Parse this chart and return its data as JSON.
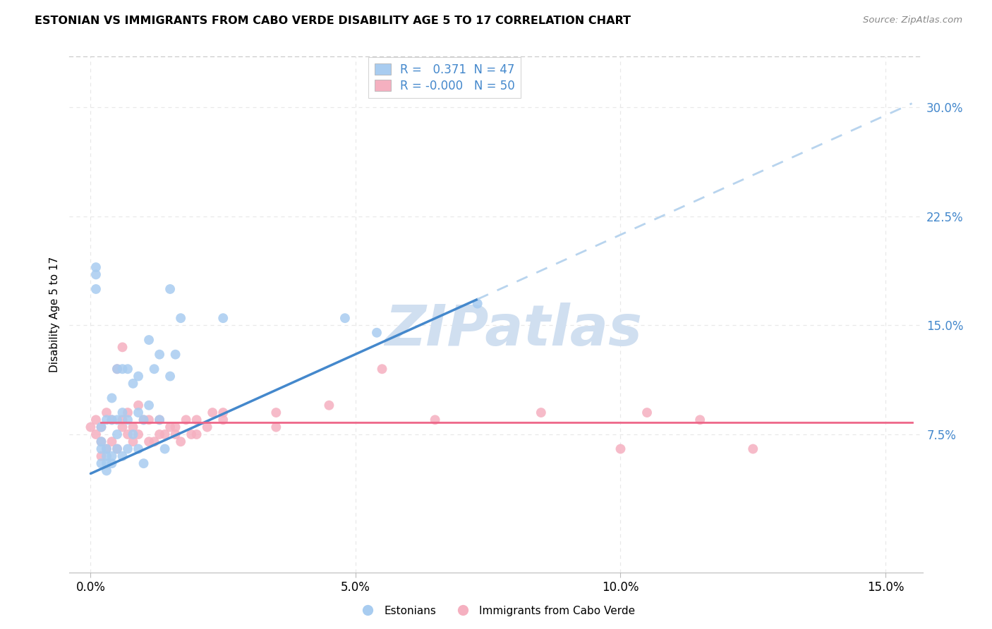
{
  "title": "ESTONIAN VS IMMIGRANTS FROM CABO VERDE DISABILITY AGE 5 TO 17 CORRELATION CHART",
  "source": "Source: ZipAtlas.com",
  "ylabel": "Disability Age 5 to 17",
  "x_ticks": [
    0.0,
    0.05,
    0.1,
    0.15
  ],
  "x_tick_labels": [
    "0.0%",
    "5.0%",
    "10.0%",
    "15.0%"
  ],
  "y_ticks_right": [
    0.075,
    0.15,
    0.225,
    0.3
  ],
  "y_tick_labels_right": [
    "7.5%",
    "15.0%",
    "22.5%",
    "30.0%"
  ],
  "xlim": [
    -0.004,
    0.157
  ],
  "ylim": [
    -0.02,
    0.335
  ],
  "legend_R_blue": "0.371",
  "legend_N_blue": "47",
  "legend_R_pink": "-0.000",
  "legend_N_pink": "50",
  "blue_color": "#A8CCF0",
  "pink_color": "#F5B0C0",
  "trend_blue_color": "#4488CC",
  "trend_pink_color": "#EE6688",
  "trend_dashed_color": "#B8D4EE",
  "watermark_text": "ZIPatlas",
  "watermark_color": "#D0DFF0",
  "grid_color": "#E8E8E8",
  "grid_style": "dotted",
  "blue_points_x": [
    0.001,
    0.001,
    0.001,
    0.002,
    0.002,
    0.002,
    0.002,
    0.003,
    0.003,
    0.003,
    0.003,
    0.003,
    0.004,
    0.004,
    0.004,
    0.004,
    0.005,
    0.005,
    0.005,
    0.005,
    0.006,
    0.006,
    0.006,
    0.007,
    0.007,
    0.007,
    0.008,
    0.008,
    0.009,
    0.009,
    0.009,
    0.01,
    0.01,
    0.011,
    0.011,
    0.012,
    0.013,
    0.013,
    0.014,
    0.015,
    0.015,
    0.016,
    0.017,
    0.025,
    0.048,
    0.054,
    0.073
  ],
  "blue_points_y": [
    0.175,
    0.185,
    0.19,
    0.055,
    0.065,
    0.07,
    0.08,
    0.05,
    0.055,
    0.06,
    0.065,
    0.085,
    0.055,
    0.06,
    0.085,
    0.1,
    0.065,
    0.075,
    0.085,
    0.12,
    0.06,
    0.09,
    0.12,
    0.065,
    0.085,
    0.12,
    0.075,
    0.11,
    0.065,
    0.09,
    0.115,
    0.055,
    0.085,
    0.095,
    0.14,
    0.12,
    0.085,
    0.13,
    0.065,
    0.115,
    0.175,
    0.13,
    0.155,
    0.155,
    0.155,
    0.145,
    0.165
  ],
  "pink_points_x": [
    0.0,
    0.001,
    0.001,
    0.002,
    0.002,
    0.002,
    0.003,
    0.003,
    0.004,
    0.004,
    0.005,
    0.005,
    0.006,
    0.006,
    0.006,
    0.007,
    0.007,
    0.008,
    0.008,
    0.009,
    0.009,
    0.01,
    0.011,
    0.011,
    0.012,
    0.013,
    0.013,
    0.014,
    0.015,
    0.016,
    0.016,
    0.017,
    0.018,
    0.019,
    0.02,
    0.02,
    0.022,
    0.023,
    0.025,
    0.025,
    0.035,
    0.035,
    0.045,
    0.055,
    0.065,
    0.085,
    0.1,
    0.105,
    0.115,
    0.125
  ],
  "pink_points_y": [
    0.08,
    0.075,
    0.085,
    0.06,
    0.07,
    0.08,
    0.065,
    0.09,
    0.07,
    0.085,
    0.065,
    0.12,
    0.08,
    0.085,
    0.135,
    0.075,
    0.09,
    0.07,
    0.08,
    0.075,
    0.095,
    0.085,
    0.07,
    0.085,
    0.07,
    0.075,
    0.085,
    0.075,
    0.08,
    0.075,
    0.08,
    0.07,
    0.085,
    0.075,
    0.085,
    0.075,
    0.08,
    0.09,
    0.09,
    0.085,
    0.09,
    0.08,
    0.095,
    0.12,
    0.085,
    0.09,
    0.065,
    0.09,
    0.085,
    0.065
  ],
  "blue_trend_x0": 0.0,
  "blue_trend_x1": 0.073,
  "blue_trend_x_end": 0.155,
  "blue_trend_y0": 0.048,
  "blue_trend_y1": 0.168,
  "pink_trend_y": 0.083,
  "figsize": [
    14.06,
    8.92
  ],
  "dpi": 100
}
